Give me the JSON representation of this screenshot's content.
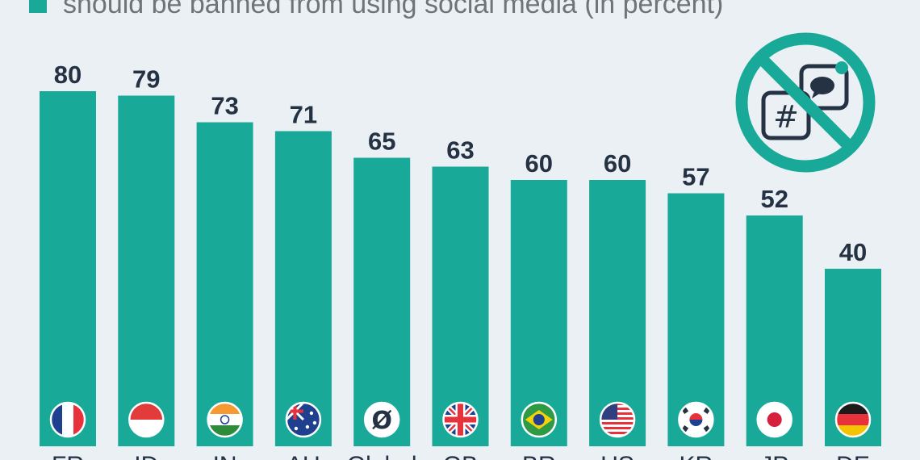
{
  "legend": {
    "text": "should be banned from using social media (in percent)",
    "color": "#18a999"
  },
  "icon": "no-social-media-icon",
  "chart_data": {
    "type": "bar",
    "categories": [
      "FR",
      "ID",
      "IN",
      "AU",
      "Global",
      "GB",
      "BR",
      "US",
      "KR",
      "JP",
      "DE"
    ],
    "flags": [
      "france-flag-icon",
      "indonesia-flag-icon",
      "india-flag-icon",
      "australia-flag-icon",
      "global-icon",
      "uk-flag-icon",
      "brazil-flag-icon",
      "usa-flag-icon",
      "south-korea-flag-icon",
      "japan-flag-icon",
      "germany-flag-icon"
    ],
    "series": [
      {
        "name": "should be banned from using social media (in percent)",
        "values": [
          80,
          79,
          73,
          71,
          65,
          63,
          60,
          60,
          57,
          52,
          40
        ]
      }
    ],
    "ylim": [
      0,
      100
    ],
    "grid": false,
    "legend_position": "top",
    "colors": {
      "bar": "#18a999",
      "label": "#253244"
    }
  }
}
